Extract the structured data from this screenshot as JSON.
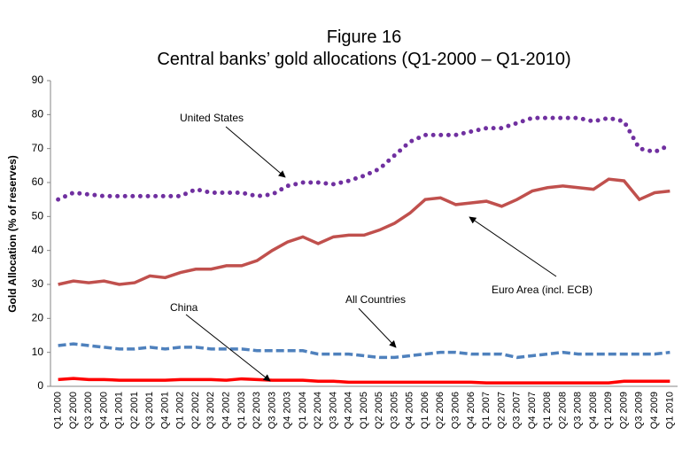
{
  "chart_data": {
    "type": "line",
    "title": "Figure 16",
    "subtitle": "Central banks’ gold allocations (Q1-2000 – Q1-2010)",
    "y_label": "Gold Allocation (% of reserves)",
    "categories": [
      "Q1 2000",
      "Q2 2000",
      "Q3 2000",
      "Q4 2000",
      "Q1 2001",
      "Q2 2001",
      "Q3 2001",
      "Q4 2001",
      "Q1 2002",
      "Q2 2002",
      "Q3 2002",
      "Q4 2002",
      "Q1 2003",
      "Q2 2003",
      "Q3 2003",
      "Q4 2003",
      "Q1 2004",
      "Q2 2004",
      "Q3 2004",
      "Q4 2004",
      "Q1 2005",
      "Q2 2005",
      "Q3 2005",
      "Q4 2005",
      "Q1 2006",
      "Q2 2006",
      "Q3 2006",
      "Q4 2006",
      "Q1 2007",
      "Q2 2007",
      "Q3 2007",
      "Q4 2007",
      "Q1 2008",
      "Q2 2008",
      "Q3 2008",
      "Q4 2008",
      "Q1 2009",
      "Q2 2009",
      "Q3 2009",
      "Q4 2009",
      "Q1 2010"
    ],
    "series": [
      {
        "name": "United States",
        "color": "#7030a0",
        "style": "dotted",
        "values": [
          55,
          57,
          56.5,
          56,
          56,
          56,
          56,
          56,
          56,
          58,
          57,
          57,
          57,
          56,
          56.5,
          59,
          60,
          60,
          59.5,
          60.5,
          62,
          64,
          68,
          72,
          74,
          74,
          74,
          75,
          76,
          76,
          77.5,
          79,
          79,
          79,
          79,
          78,
          79,
          78,
          70,
          69,
          71
        ]
      },
      {
        "name": "Euro Area (incl. ECB)",
        "color": "#c0504d",
        "style": "solid",
        "values": [
          30,
          31,
          30.5,
          31,
          30,
          30.5,
          32.5,
          32,
          33.5,
          34.5,
          34.5,
          35.5,
          35.5,
          37,
          40,
          42.5,
          44,
          42,
          44,
          44.5,
          44.5,
          46,
          48,
          51,
          55,
          55.5,
          53.5,
          54,
          54.5,
          53,
          55,
          57.5,
          58.5,
          59,
          58.5,
          58,
          61,
          60.5,
          55,
          57,
          57.5
        ]
      },
      {
        "name": "All Countries",
        "color": "#4f81bd",
        "style": "dashed",
        "values": [
          12,
          12.5,
          12,
          11.5,
          11,
          11,
          11.5,
          11,
          11.5,
          11.5,
          11,
          11,
          11,
          10.5,
          10.5,
          10.5,
          10.5,
          9.5,
          9.5,
          9.5,
          9,
          8.5,
          8.5,
          9,
          9.5,
          10,
          10,
          9.5,
          9.5,
          9.5,
          8.5,
          9,
          9.5,
          10,
          9.5,
          9.5,
          9.5,
          9.5,
          9.5,
          9.5,
          10
        ]
      },
      {
        "name": "China",
        "color": "#ff0000",
        "style": "solid",
        "values": [
          2,
          2.3,
          2,
          2,
          1.8,
          1.8,
          1.8,
          1.8,
          2,
          2,
          2,
          1.8,
          2.2,
          2,
          1.8,
          1.8,
          1.8,
          1.5,
          1.5,
          1.2,
          1.2,
          1.2,
          1.2,
          1.2,
          1.2,
          1.2,
          1.2,
          1.2,
          1,
          1,
          1,
          1,
          1,
          1,
          1,
          1,
          1,
          1.5,
          1.5,
          1.5,
          1.5
        ]
      }
    ],
    "ylim": [
      0,
      90
    ],
    "yticks": [
      0,
      10,
      20,
      30,
      40,
      50,
      60,
      70,
      80,
      90
    ],
    "grid": false
  }
}
